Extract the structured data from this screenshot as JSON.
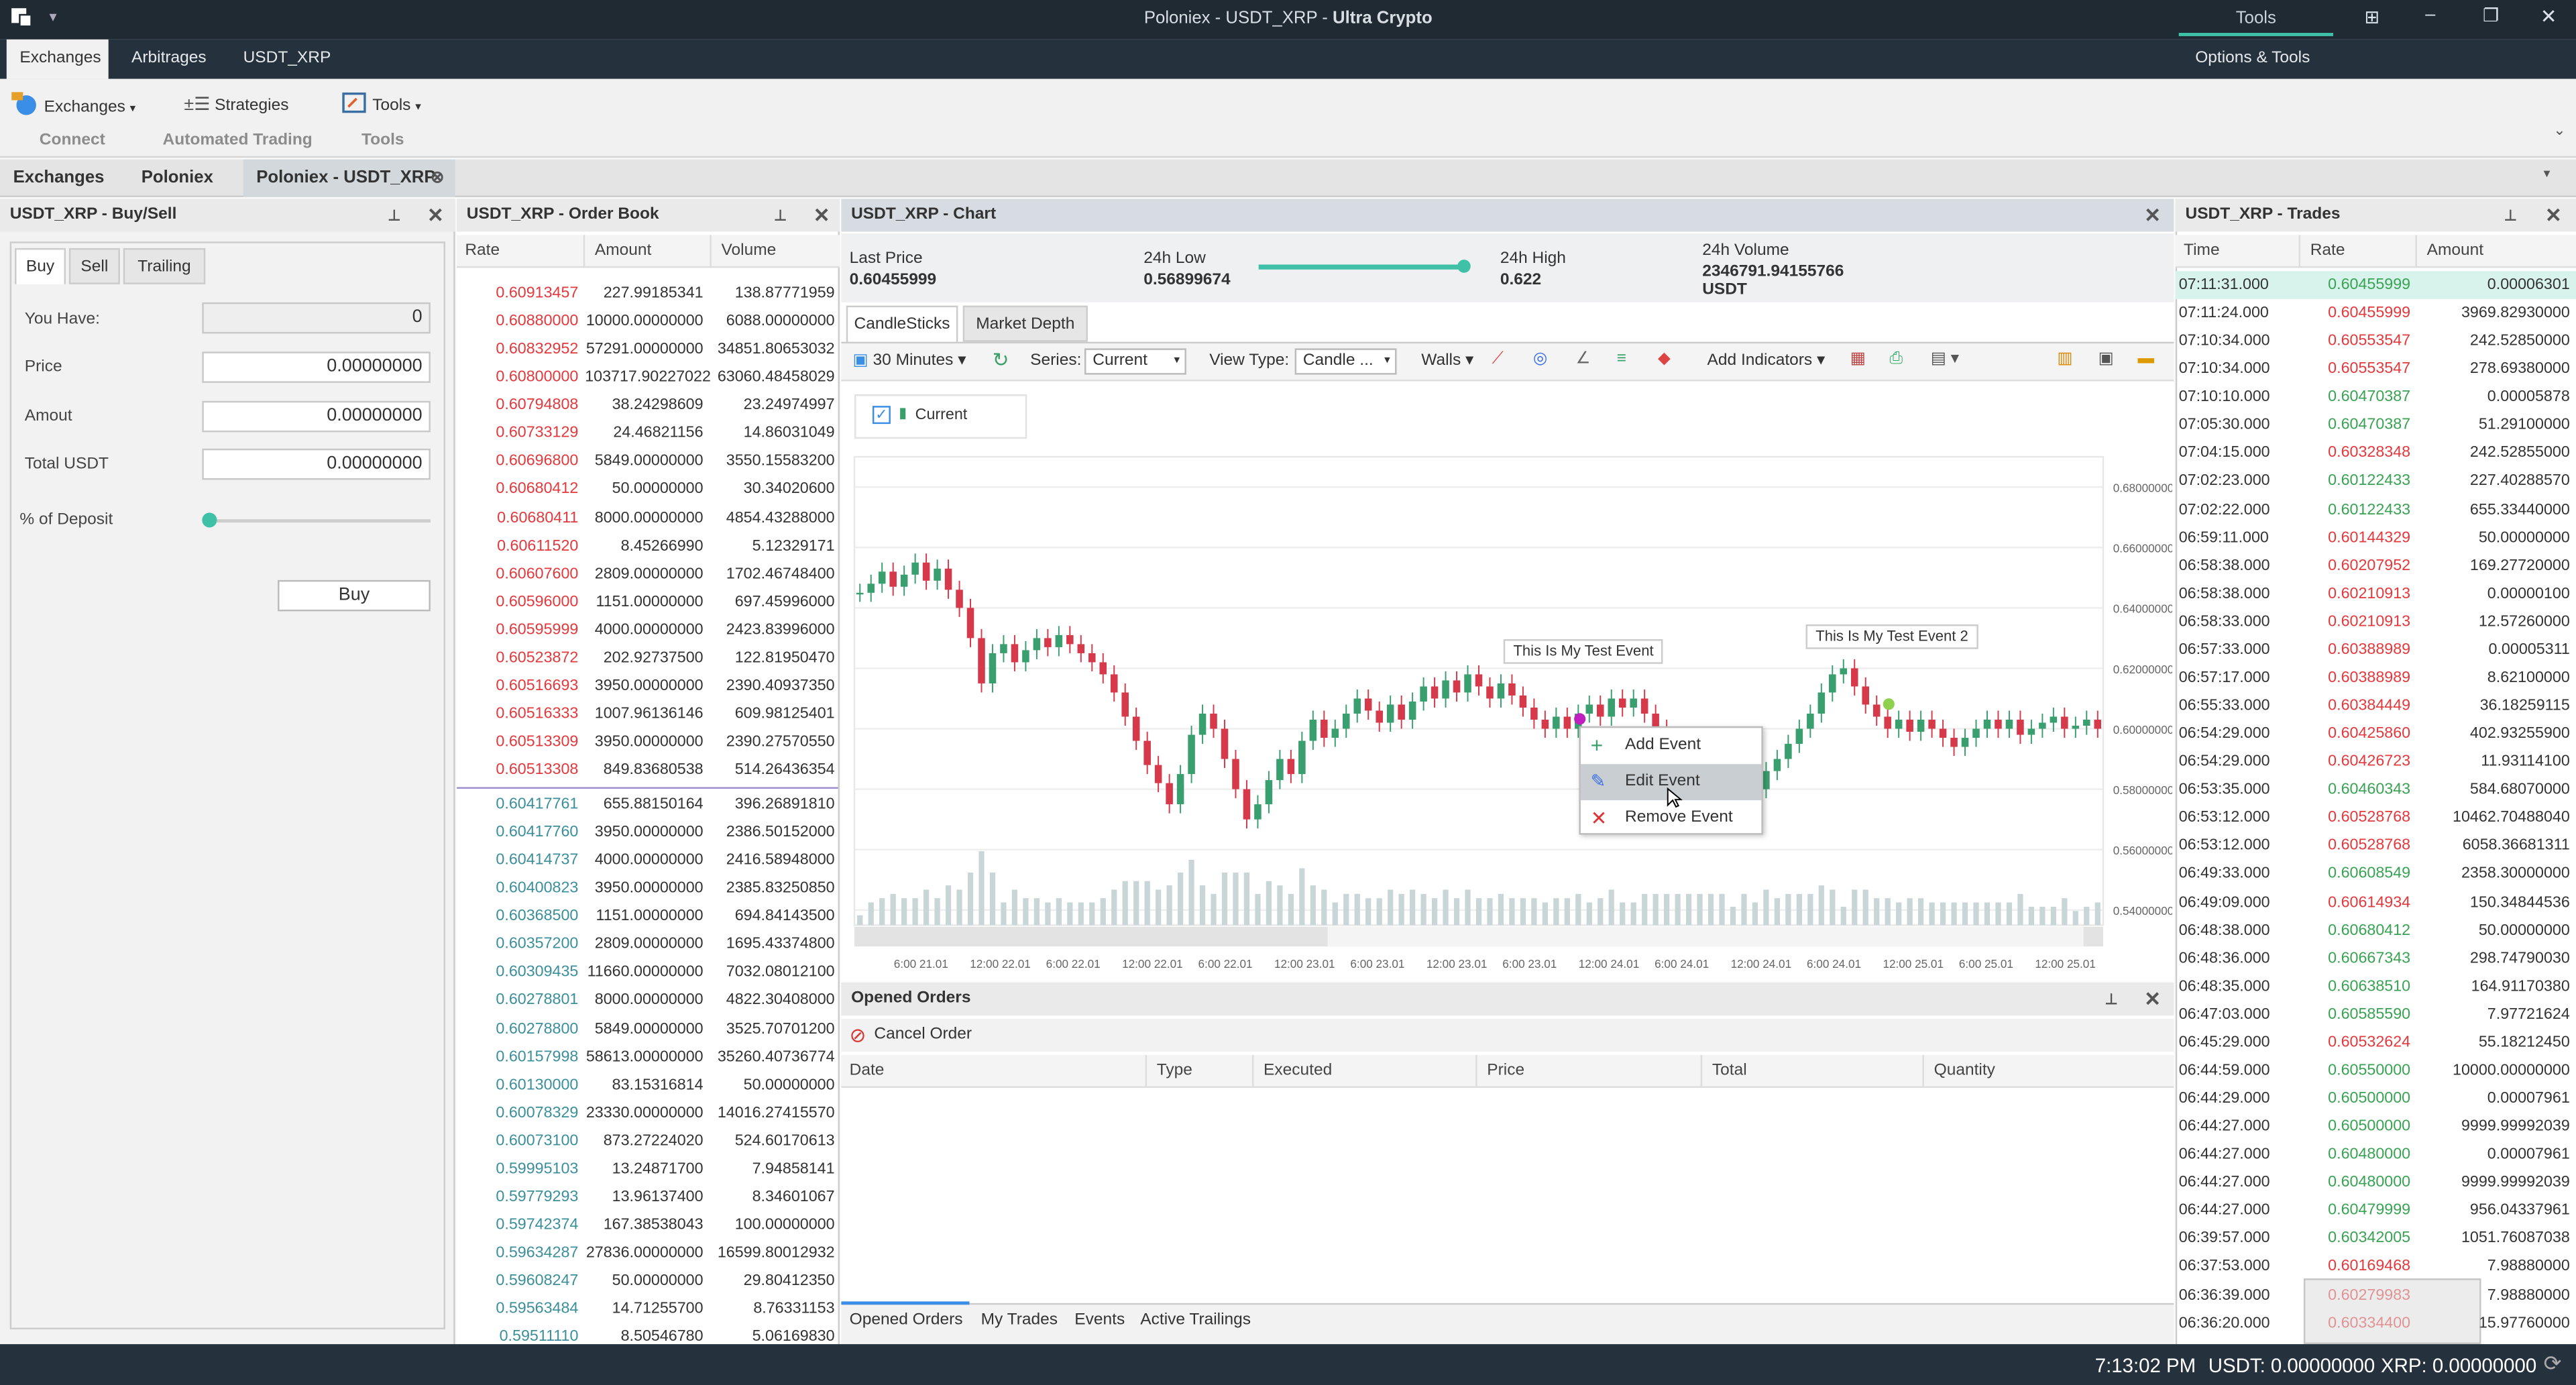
{
  "window": {
    "title_left": "Poloniex - USDT_XRP - ",
    "title_app": "Ultra Crypto",
    "tools_tab": "Tools"
  },
  "menu": {
    "items": [
      "Exchanges",
      "Arbitrages",
      "USDT_XRP"
    ],
    "options": "Options & Tools"
  },
  "ribbon": {
    "exchanges": "Exchanges",
    "strategies": "Strategies",
    "tools": "Tools",
    "grp_connect": "Connect",
    "grp_auto": "Automated Trading",
    "grp_tools": "Tools"
  },
  "doc_tabs": [
    "Exchanges",
    "Poloniex",
    "Poloniex - USDT_XRP"
  ],
  "buysell": {
    "title": "USDT_XRP - Buy/Sell",
    "tabs": [
      "Buy",
      "Sell",
      "Trailing"
    ],
    "you_have_lbl": "You Have:",
    "you_have": "0",
    "price_lbl": "Price",
    "price": "0.00000000",
    "amount_lbl": "Amout",
    "amount": "0.00000000",
    "total_lbl": "Total USDT",
    "total": "0.00000000",
    "deposit_lbl": "% of Deposit",
    "buy": "Buy"
  },
  "orderbook": {
    "title": "USDT_XRP - Order Book",
    "cols": [
      "Rate",
      "Amount",
      "Volume"
    ],
    "asks": [
      [
        "0.60913457",
        "227.99185341",
        "138.87771959"
      ],
      [
        "0.60880000",
        "10000.00000000",
        "6088.00000000"
      ],
      [
        "0.60832952",
        "57291.00000000",
        "34851.80653032"
      ],
      [
        "0.60800000",
        "103717.90227022",
        "63060.48458029"
      ],
      [
        "0.60794808",
        "38.24298609",
        "23.24974997"
      ],
      [
        "0.60733129",
        "24.46821156",
        "14.86031049"
      ],
      [
        "0.60696800",
        "5849.00000000",
        "3550.15583200"
      ],
      [
        "0.60680412",
        "50.00000000",
        "30.34020600"
      ],
      [
        "0.60680411",
        "8000.00000000",
        "4854.43288000"
      ],
      [
        "0.60611520",
        "8.45266990",
        "5.12329171"
      ],
      [
        "0.60607600",
        "2809.00000000",
        "1702.46748400"
      ],
      [
        "0.60596000",
        "1151.00000000",
        "697.45996000"
      ],
      [
        "0.60595999",
        "4000.00000000",
        "2423.83996000"
      ],
      [
        "0.60523872",
        "202.92737500",
        "122.81950470"
      ],
      [
        "0.60516693",
        "3950.00000000",
        "2390.40937350"
      ],
      [
        "0.60516333",
        "1007.96136146",
        "609.98125401"
      ],
      [
        "0.60513309",
        "3950.00000000",
        "2390.27570550"
      ],
      [
        "0.60513308",
        "849.83680538",
        "514.26436354"
      ]
    ],
    "bids": [
      [
        "0.60417761",
        "655.88150164",
        "396.26891810"
      ],
      [
        "0.60417760",
        "3950.00000000",
        "2386.50152000"
      ],
      [
        "0.60414737",
        "4000.00000000",
        "2416.58948000"
      ],
      [
        "0.60400823",
        "3950.00000000",
        "2385.83250850"
      ],
      [
        "0.60368500",
        "1151.00000000",
        "694.84143500"
      ],
      [
        "0.60357200",
        "2809.00000000",
        "1695.43374800"
      ],
      [
        "0.60309435",
        "11660.00000000",
        "7032.08012100"
      ],
      [
        "0.60278801",
        "8000.00000000",
        "4822.30408000"
      ],
      [
        "0.60278800",
        "5849.00000000",
        "3525.70701200"
      ],
      [
        "0.60157998",
        "58613.00000000",
        "35260.40736774"
      ],
      [
        "0.60130000",
        "83.15316814",
        "50.00000000"
      ],
      [
        "0.60078329",
        "23330.00000000",
        "14016.27415570"
      ],
      [
        "0.60073100",
        "873.27224020",
        "524.60170613"
      ],
      [
        "0.59995103",
        "13.24871700",
        "7.94858141"
      ],
      [
        "0.59779293",
        "13.96137400",
        "8.34601067"
      ],
      [
        "0.59742374",
        "167.38538043",
        "100.00000000"
      ],
      [
        "0.59634287",
        "27836.00000000",
        "16599.80012932"
      ],
      [
        "0.59608247",
        "50.00000000",
        "29.80412350"
      ],
      [
        "0.59563484",
        "14.71255700",
        "8.76331153"
      ],
      [
        "0.59511110",
        "8.50546780",
        "5.06169830"
      ]
    ]
  },
  "chart": {
    "title": "USDT_XRP - Chart",
    "last_price_lbl": "Last Price",
    "last_price": "0.60455999",
    "low_lbl": "24h Low",
    "low": "0.56899674",
    "high_lbl": "24h High",
    "high": "0.622",
    "vol_lbl": "24h Volume",
    "vol": "2346791.94155766",
    "vol_unit": "USDT",
    "tabs": [
      "CandleSticks",
      "Market Depth"
    ],
    "interval": "30 Minutes",
    "series_lbl": "Series:",
    "series": "Current",
    "viewtype_lbl": "View Type:",
    "viewtype": "Candle ...",
    "walls": "Walls",
    "add_ind": "Add Indicators",
    "legend": "Current",
    "yticks": [
      "0.68000000",
      "0.66000000",
      "0.64000000",
      "0.62000000",
      "0.60000000",
      "0.58000000",
      "0.56000000",
      "0.54000000"
    ],
    "xticks": [
      "6:00 21.01",
      "12:00 22.01",
      "6:00 22.01",
      "12:00 22.01",
      "6:00 22.01",
      "12:00 23.01",
      "6:00 23.01",
      "12:00 23.01",
      "6:00 23.01",
      "12:00 24.01",
      "6:00 24.01",
      "12:00 24.01",
      "6:00 24.01",
      "12:00 25.01",
      "6:00 25.01",
      "12:00 25.01"
    ],
    "event1": "This Is My Test Event",
    "event2": "This Is My Test Event 2",
    "menu": [
      "Add Event",
      "Edit Event",
      "Remove Event"
    ]
  },
  "chart_data": {
    "type": "candlestick",
    "ylim": [
      0.535,
      0.69
    ],
    "close": [
      0.645,
      0.648,
      0.652,
      0.647,
      0.651,
      0.655,
      0.649,
      0.653,
      0.646,
      0.64,
      0.63,
      0.615,
      0.625,
      0.628,
      0.622,
      0.626,
      0.63,
      0.627,
      0.631,
      0.628,
      0.625,
      0.622,
      0.618,
      0.612,
      0.604,
      0.596,
      0.588,
      0.582,
      0.575,
      0.585,
      0.598,
      0.605,
      0.6,
      0.59,
      0.58,
      0.57,
      0.575,
      0.583,
      0.59,
      0.585,
      0.596,
      0.603,
      0.597,
      0.6,
      0.605,
      0.61,
      0.606,
      0.602,
      0.608,
      0.603,
      0.609,
      0.614,
      0.61,
      0.616,
      0.612,
      0.618,
      0.614,
      0.61,
      0.615,
      0.611,
      0.607,
      0.603,
      0.6,
      0.604,
      0.6,
      0.605,
      0.608,
      0.604,
      0.61,
      0.607,
      0.61,
      0.605,
      0.6,
      0.595,
      0.59,
      0.585,
      0.58,
      0.575,
      0.57,
      0.572,
      0.577,
      0.58,
      0.586,
      0.59,
      0.595,
      0.6,
      0.605,
      0.612,
      0.618,
      0.62,
      0.614,
      0.608,
      0.604,
      0.6,
      0.603,
      0.599,
      0.603,
      0.6,
      0.597,
      0.594,
      0.597,
      0.6,
      0.603,
      0.6,
      0.603,
      0.598,
      0.6,
      0.602,
      0.604,
      0.6,
      0.601,
      0.603,
      0.6
    ]
  },
  "trades": {
    "title": "USDT_XRP - Trades",
    "cols": [
      "Time",
      "Rate",
      "Amount"
    ],
    "rows": [
      [
        "07:11:31.000",
        "0.60455999",
        "0.00006301",
        "g"
      ],
      [
        "07:11:24.000",
        "0.60455999",
        "3969.82930000",
        "r"
      ],
      [
        "07:10:34.000",
        "0.60553547",
        "242.52850000",
        "r"
      ],
      [
        "07:10:34.000",
        "0.60553547",
        "278.69380000",
        "r"
      ],
      [
        "07:10:10.000",
        "0.60470387",
        "0.00005878",
        "g"
      ],
      [
        "07:05:30.000",
        "0.60470387",
        "51.29100000",
        "g"
      ],
      [
        "07:04:15.000",
        "0.60328348",
        "242.52855000",
        "r"
      ],
      [
        "07:02:23.000",
        "0.60122433",
        "227.40288570",
        "g"
      ],
      [
        "07:02:22.000",
        "0.60122433",
        "655.33440000",
        "g"
      ],
      [
        "06:59:11.000",
        "0.60144329",
        "50.00000000",
        "r"
      ],
      [
        "06:58:38.000",
        "0.60207952",
        "169.27720000",
        "r"
      ],
      [
        "06:58:38.000",
        "0.60210913",
        "0.00000100",
        "r"
      ],
      [
        "06:58:33.000",
        "0.60210913",
        "12.57260000",
        "r"
      ],
      [
        "06:57:33.000",
        "0.60388989",
        "0.00005311",
        "r"
      ],
      [
        "06:57:17.000",
        "0.60388989",
        "8.62100000",
        "r"
      ],
      [
        "06:55:33.000",
        "0.60384449",
        "36.18259115",
        "r"
      ],
      [
        "06:54:29.000",
        "0.60425860",
        "402.93255900",
        "r"
      ],
      [
        "06:54:29.000",
        "0.60426723",
        "11.93114100",
        "r"
      ],
      [
        "06:53:35.000",
        "0.60460343",
        "584.68070000",
        "g"
      ],
      [
        "06:53:12.000",
        "0.60528768",
        "10462.70488040",
        "r"
      ],
      [
        "06:53:12.000",
        "0.60528768",
        "6058.36681311",
        "r"
      ],
      [
        "06:49:33.000",
        "0.60608549",
        "2358.30000000",
        "g"
      ],
      [
        "06:49:09.000",
        "0.60614934",
        "150.34844536",
        "r"
      ],
      [
        "06:48:38.000",
        "0.60680412",
        "50.00000000",
        "g"
      ],
      [
        "06:48:36.000",
        "0.60667343",
        "298.74790030",
        "g"
      ],
      [
        "06:48:35.000",
        "0.60638510",
        "164.91170380",
        "g"
      ],
      [
        "06:47:03.000",
        "0.60585590",
        "7.97721624",
        "g"
      ],
      [
        "06:45:29.000",
        "0.60532624",
        "55.18212450",
        "r"
      ],
      [
        "06:44:59.000",
        "0.60550000",
        "10000.00000000",
        "g"
      ],
      [
        "06:44:29.000",
        "0.60500000",
        "0.00007961",
        "g"
      ],
      [
        "06:44:27.000",
        "0.60500000",
        "9999.99992039",
        "g"
      ],
      [
        "06:44:27.000",
        "0.60480000",
        "0.00007961",
        "g"
      ],
      [
        "06:44:27.000",
        "0.60480000",
        "9999.99992039",
        "g"
      ],
      [
        "06:44:27.000",
        "0.60479999",
        "956.04337961",
        "g"
      ],
      [
        "06:39:57.000",
        "0.60342005",
        "1051.76087038",
        "g"
      ],
      [
        "06:37:53.000",
        "0.60169468",
        "7.98880000",
        "r"
      ],
      [
        "06:36:39.000",
        "0.60279983",
        "7.98880000",
        "r"
      ],
      [
        "06:36:20.000",
        "0.60334400",
        "15.97760000",
        "r"
      ]
    ]
  },
  "orders": {
    "title": "Opened Orders",
    "cancel": "Cancel Order",
    "cols": [
      "Date",
      "Type",
      "Executed",
      "Price",
      "Total",
      "Quantity"
    ],
    "bottom_tabs": [
      "Opened Orders",
      "My Trades",
      "Events",
      "Active Trailings"
    ]
  },
  "status": {
    "time": "7:13:02 PM",
    "usdt": "USDT: 0.00000000",
    "xrp": "XRP: 0.00000000"
  },
  "colors": {
    "accent": "#3fc1a7",
    "ask": "#e4393c",
    "bid": "#38a352",
    "dark": "#1f2a33"
  }
}
